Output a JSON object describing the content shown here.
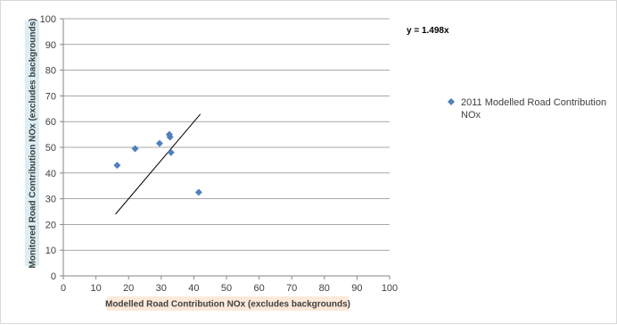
{
  "chart_data": {
    "type": "scatter",
    "title": "",
    "xlabel": "Modelled Road Contribution  NOx (excludes backgrounds)",
    "ylabel": "Monitored Road Contribution  NOx (excludes backgrounds)",
    "xlim": [
      0,
      100
    ],
    "ylim": [
      0,
      100
    ],
    "xticks": [
      "0",
      "10",
      "20",
      "30",
      "40",
      "50",
      "60",
      "70",
      "80",
      "90",
      "100"
    ],
    "yticks": [
      "0",
      "10",
      "20",
      "30",
      "40",
      "50",
      "60",
      "70",
      "80",
      "90",
      "100"
    ],
    "grid": "horizontal",
    "legend_position": "right",
    "series": [
      {
        "name": "2011 Modelled Road Contribution NOx",
        "color": "#4f81bd",
        "marker": "diamond",
        "points": [
          {
            "x": 16.5,
            "y": 43
          },
          {
            "x": 22,
            "y": 49.5
          },
          {
            "x": 29.5,
            "y": 51.5
          },
          {
            "x": 32.5,
            "y": 55
          },
          {
            "x": 32.7,
            "y": 54
          },
          {
            "x": 33,
            "y": 48
          },
          {
            "x": 41.5,
            "y": 32.5
          }
        ]
      }
    ],
    "trendline": {
      "label": "y = 1.498x",
      "color": "#000000",
      "from": {
        "x": 16,
        "y": 24
      },
      "to": {
        "x": 42,
        "y": 62.9
      }
    },
    "colors": {
      "grid": "#8c8c8c",
      "axis": "#868686",
      "xlabel_bg": "#fde9d9",
      "ylabel_bg": "#dbeef4"
    }
  }
}
